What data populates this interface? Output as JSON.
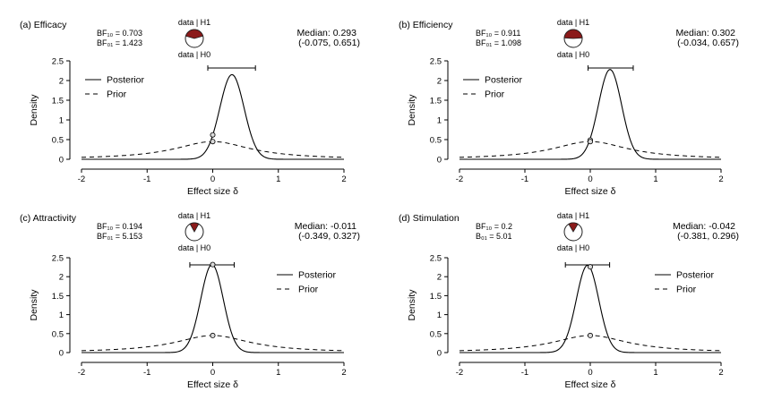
{
  "figure": {
    "xlabel": "Effect size δ",
    "ylabel": "Density",
    "pie_top_label": "data | H1",
    "pie_bottom_label": "data | H0",
    "legend_posterior": "Posterior",
    "legend_prior": "Prior"
  },
  "chart_data": [
    {
      "type": "line",
      "title": "(a) Efficacy",
      "bf_line1": "BF₁₀ = 0.703",
      "bf_line2": "BF₀₁ = 1.423",
      "median_text": "Median: 0.293",
      "ci_text": "(-0.075, 0.651)",
      "median": 0.293,
      "ci": [
        -0.075,
        0.651
      ],
      "posterior": {
        "mean": 0.293,
        "sd": 0.185,
        "peak": 2.15
      },
      "prior": {
        "scale": 0.707
      },
      "posterior_at_zero": 0.62,
      "prior_at_zero": 0.45,
      "h1_fraction": 0.41,
      "legend_position": "top-left",
      "xlim": [
        -2,
        2
      ],
      "ylim": [
        0,
        2.5
      ],
      "xticks": [
        "-2",
        "-1",
        "0",
        "1",
        "2"
      ],
      "yticks": [
        "0",
        "0.5",
        "1",
        "1.5",
        "2",
        "2.5"
      ],
      "colors": {
        "h1": "#8b1a1a",
        "h0": "#ffffff"
      }
    },
    {
      "type": "line",
      "title": "(b) Efficiency",
      "bf_line1": "BF₁₀ = 0.911",
      "bf_line2": "BF₀₁ = 1.098",
      "median_text": "Median: 0.302",
      "ci_text": "(-0.034, 0.657)",
      "median": 0.302,
      "ci": [
        -0.034,
        0.657
      ],
      "posterior": {
        "mean": 0.302,
        "sd": 0.177,
        "peak": 2.28
      },
      "prior": {
        "scale": 0.707
      },
      "posterior_at_zero": 0.49,
      "prior_at_zero": 0.45,
      "h1_fraction": 0.48,
      "legend_position": "top-left",
      "xlim": [
        -2,
        2
      ],
      "ylim": [
        0,
        2.5
      ],
      "xticks": [
        "-2",
        "-1",
        "0",
        "1",
        "2"
      ],
      "yticks": [
        "0",
        "0.5",
        "1",
        "1.5",
        "2",
        "2.5"
      ],
      "colors": {
        "h1": "#8b1a1a",
        "h0": "#ffffff"
      }
    },
    {
      "type": "line",
      "title": "(c) Attractivity",
      "bf_line1": "BF₁₀ = 0.194",
      "bf_line2": "BF₀₁ = 5.153",
      "median_text": "Median: -0.011",
      "ci_text": "(-0.349, 0.327)",
      "median": -0.011,
      "ci": [
        -0.349,
        0.327
      ],
      "posterior": {
        "mean": -0.011,
        "sd": 0.172,
        "peak": 2.32
      },
      "prior": {
        "scale": 0.707
      },
      "posterior_at_zero": 2.32,
      "prior_at_zero": 0.45,
      "h1_fraction": 0.16,
      "legend_position": "top-right",
      "xlim": [
        -2,
        2
      ],
      "ylim": [
        0,
        2.5
      ],
      "xticks": [
        "-2",
        "-1",
        "0",
        "1",
        "2"
      ],
      "yticks": [
        "0",
        "0.5",
        "1",
        "1.5",
        "2",
        "2.5"
      ],
      "colors": {
        "h1": "#8b1a1a",
        "h0": "#ffffff"
      }
    },
    {
      "type": "line",
      "title": "(d) Stimulation",
      "bf_line1": "BF₁₀ = 0.2",
      "bf_line2": "B₀₁ = 5.01",
      "median_text": "Median: -0.042",
      "ci_text": "(-0.381, 0.296)",
      "median": -0.042,
      "ci": [
        -0.381,
        0.296
      ],
      "posterior": {
        "mean": -0.042,
        "sd": 0.172,
        "peak": 2.3
      },
      "prior": {
        "scale": 0.707
      },
      "posterior_at_zero": 2.26,
      "prior_at_zero": 0.45,
      "h1_fraction": 0.17,
      "legend_position": "top-right",
      "xlim": [
        -2,
        2
      ],
      "ylim": [
        0,
        2.5
      ],
      "xticks": [
        "-2",
        "-1",
        "0",
        "1",
        "2"
      ],
      "yticks": [
        "0",
        "0.5",
        "1",
        "1.5",
        "2",
        "2.5"
      ],
      "colors": {
        "h1": "#8b1a1a",
        "h0": "#ffffff"
      }
    }
  ]
}
